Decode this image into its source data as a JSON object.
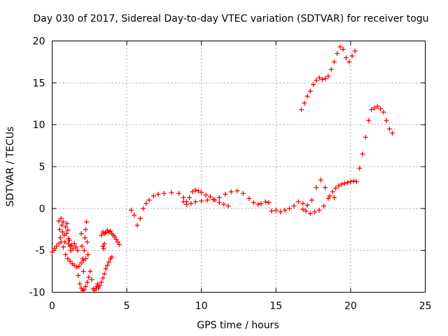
{
  "chart_data": {
    "type": "scatter",
    "title": "Day 030 of 2017, Sidereal Day-to-day VTEC variation (SDTVAR) for receiver togu",
    "xlabel": "GPS time / hours",
    "ylabel": "SDTVAR / TECUs",
    "xlim": [
      0,
      25
    ],
    "ylim": [
      -10,
      20
    ],
    "xticks": [
      "0",
      "5",
      "10",
      "15",
      "20",
      "25"
    ],
    "yticks": [
      "-10",
      "-5",
      "0",
      "5",
      "10",
      "15",
      "20"
    ],
    "grid": true,
    "marker": "+",
    "color": "#ff0000",
    "series": [
      {
        "x": [
          0.0,
          0.15,
          0.3,
          0.45,
          0.6,
          0.75,
          0.9,
          1.05,
          1.2,
          1.35,
          1.5,
          1.65,
          1.8,
          1.95,
          2.1,
          2.25
        ],
        "y": [
          -5.2,
          -4.8,
          -4.5,
          -4.2,
          -4.0,
          -4.6,
          -5.5,
          -6.0,
          -6.3,
          -6.6,
          -6.8,
          -7.0,
          -6.9,
          -6.5,
          -6.2,
          -6.0
        ]
      },
      {
        "x": [
          0.45,
          0.5,
          0.55,
          0.6,
          0.65,
          0.7,
          0.75,
          0.8,
          0.85,
          0.9,
          0.95,
          1.0,
          1.05,
          1.1
        ],
        "y": [
          -1.5,
          -2.5,
          -3.5,
          -1.2,
          -2.0,
          -2.8,
          -1.6,
          -3.2,
          -4.0,
          -2.2,
          -3.0,
          -1.8,
          -2.6,
          -3.6
        ]
      },
      {
        "x": [
          1.1,
          1.15,
          1.2,
          1.25,
          1.3,
          1.4,
          1.5,
          1.6,
          1.7
        ],
        "y": [
          -4.2,
          -3.8,
          -4.5,
          -5.0,
          -4.4,
          -4.8,
          -4.2,
          -4.6,
          -5.0
        ]
      },
      {
        "x": [
          1.75,
          1.85,
          1.95,
          2.05,
          2.15,
          2.25,
          2.35,
          2.45,
          2.55,
          2.65,
          2.75,
          2.85,
          2.95,
          3.05
        ],
        "y": [
          -8.0,
          -9.0,
          -9.5,
          -9.8,
          -9.7,
          -9.3,
          -8.8,
          -8.2,
          -7.5,
          -8.5,
          -9.6,
          -9.8,
          -9.5,
          -9.0
        ]
      },
      {
        "x": [
          1.95,
          2.0,
          2.05,
          2.1,
          2.15,
          2.2,
          2.25,
          2.3,
          2.35,
          2.4
        ],
        "y": [
          -3.0,
          -4.5,
          -6.0,
          -7.5,
          -5.0,
          -3.5,
          -2.5,
          -1.6,
          -4.0,
          -5.5
        ]
      },
      {
        "x": [
          3.0,
          3.1,
          3.2,
          3.3,
          3.4,
          3.5,
          3.6,
          3.7,
          3.8,
          3.9,
          4.0
        ],
        "y": [
          -9.3,
          -9.5,
          -9.2,
          -8.8,
          -8.3,
          -7.8,
          -7.2,
          -6.8,
          -6.4,
          -6.0,
          -5.8
        ]
      },
      {
        "x": [
          3.3,
          3.4,
          3.5,
          3.6,
          3.7,
          3.8,
          3.9,
          4.0,
          4.1,
          4.2,
          4.3,
          4.4,
          4.5
        ],
        "y": [
          -3.2,
          -2.8,
          -3.0,
          -2.9,
          -2.6,
          -2.8,
          -2.7,
          -3.0,
          -3.2,
          -3.4,
          -3.7,
          -4.0,
          -4.3
        ]
      },
      {
        "x": [
          3.4,
          3.45,
          3.5
        ],
        "y": [
          -4.5,
          -4.8,
          -4.2
        ]
      },
      {
        "x": [
          5.3,
          5.5,
          5.7,
          5.9,
          6.1,
          6.3,
          6.5,
          6.8,
          7.1,
          7.5,
          8.0,
          8.5,
          8.8,
          9.0,
          9.2,
          9.4,
          9.6,
          9.8,
          10.0,
          10.3,
          10.6,
          10.9,
          11.2,
          11.5,
          11.8
        ],
        "y": [
          -0.2,
          -0.8,
          -2.0,
          -1.2,
          0.0,
          0.6,
          1.0,
          1.5,
          1.7,
          1.8,
          1.9,
          1.8,
          1.3,
          0.8,
          1.3,
          2.0,
          2.2,
          2.1,
          1.9,
          1.6,
          1.4,
          1.0,
          0.7,
          0.5,
          0.3
        ]
      },
      {
        "x": [
          8.8,
          9.0,
          9.3,
          9.6,
          10.0,
          10.4,
          10.8,
          11.2,
          11.6,
          12.0,
          12.4,
          12.8,
          13.2,
          13.5,
          13.8,
          14.0,
          14.3,
          14.5
        ],
        "y": [
          0.8,
          0.5,
          0.6,
          0.8,
          0.9,
          1.0,
          1.1,
          1.3,
          1.7,
          2.0,
          2.1,
          1.8,
          1.2,
          0.7,
          0.5,
          0.6,
          0.8,
          0.7
        ]
      },
      {
        "x": [
          14.7,
          15.0,
          15.3,
          15.6,
          15.9,
          16.2,
          16.5,
          16.8,
          17.1,
          17.4,
          17.7,
          18.0,
          18.3,
          18.6,
          18.9
        ],
        "y": [
          -0.3,
          -0.2,
          -0.4,
          -0.2,
          0.0,
          0.3,
          0.8,
          0.6,
          0.4,
          1.0,
          2.5,
          3.4,
          2.5,
          1.5,
          1.3
        ]
      },
      {
        "x": [
          16.8,
          17.0,
          17.3,
          17.6,
          17.9,
          18.2,
          18.5,
          18.8,
          19.0,
          19.2,
          19.4,
          19.6,
          19.8,
          20.0,
          20.2,
          20.4
        ],
        "y": [
          -0.1,
          -0.3,
          -0.6,
          -0.4,
          -0.2,
          0.3,
          1.2,
          2.0,
          2.4,
          2.7,
          2.9,
          3.0,
          3.1,
          3.2,
          3.3,
          3.2
        ]
      },
      {
        "x": [
          20.6,
          20.8,
          21.0,
          21.2,
          21.4,
          21.6,
          21.8,
          22.0,
          22.2,
          22.4,
          22.6,
          22.8
        ],
        "y": [
          4.8,
          6.5,
          8.5,
          10.5,
          11.8,
          12.0,
          12.2,
          11.9,
          11.5,
          10.5,
          9.5,
          9.0
        ]
      },
      {
        "x": [
          16.7,
          16.9,
          17.1,
          17.3,
          17.5,
          17.7,
          17.9,
          18.1,
          18.3,
          18.5,
          18.7,
          18.9,
          19.1,
          19.3,
          19.5,
          19.7,
          19.9,
          20.1,
          20.3
        ],
        "y": [
          11.8,
          12.6,
          13.4,
          14.0,
          14.8,
          15.3,
          15.6,
          15.4,
          15.5,
          15.8,
          16.6,
          17.5,
          18.5,
          19.3,
          19.0,
          18.0,
          17.5,
          18.2,
          18.8
        ]
      }
    ]
  }
}
